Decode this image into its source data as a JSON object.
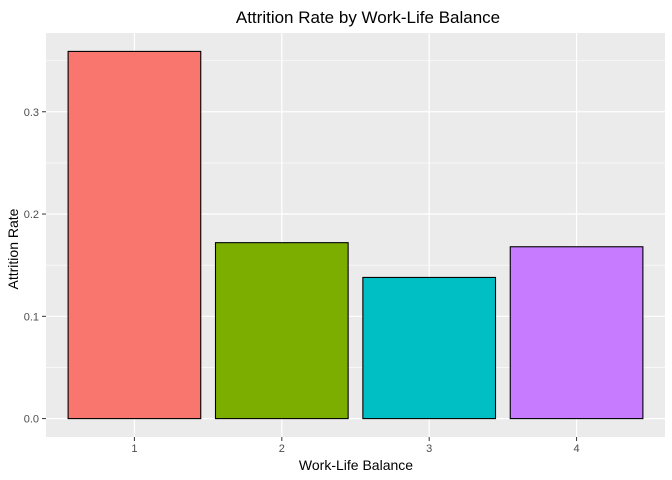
{
  "chart_data": {
    "type": "bar",
    "title": "Attrition Rate by Work-Life Balance",
    "xlabel": "Work-Life Balance",
    "ylabel": "Attrition Rate",
    "categories": [
      "1",
      "2",
      "3",
      "4"
    ],
    "values": [
      0.359,
      0.172,
      0.138,
      0.168
    ],
    "colors": [
      "#F8766D",
      "#7CAE00",
      "#00BFC4",
      "#C77CFF"
    ],
    "bar_outline_color": "#000000",
    "panel_background": "#EBEBEB",
    "grid": true,
    "grid_color": "#FFFFFF",
    "ylim": [
      -0.018,
      0.377
    ],
    "yticks": [
      0.0,
      0.1,
      0.2,
      0.3
    ],
    "ytick_labels": [
      "0.0",
      "0.1",
      "0.2",
      "0.3"
    ],
    "legend": "none"
  }
}
